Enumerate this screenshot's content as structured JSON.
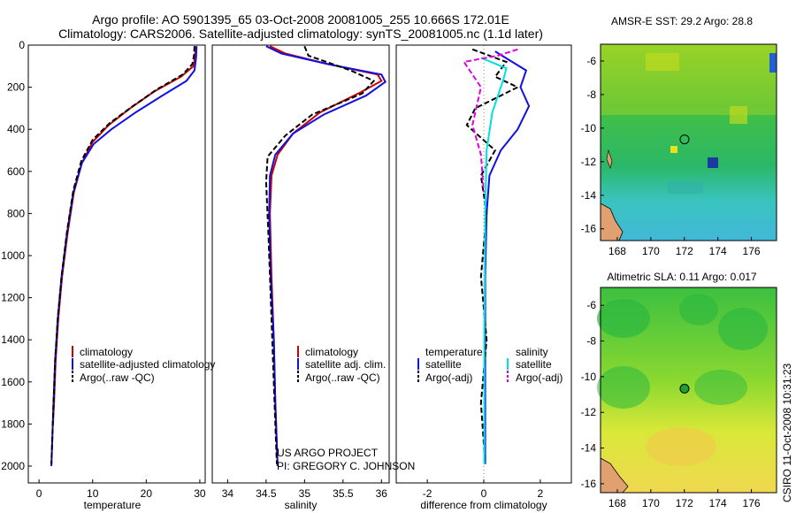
{
  "header": {
    "title_line1": "Argo profile: AO 5901395_65 03-Oct-2008 20081005_255 10.666S 172.01E",
    "title_line2": "Climatology: CARS2006. Satellite-adjusted climatology: synTS_20081005.nc (1.1d later)"
  },
  "credits": {
    "line1": "US ARGO PROJECT",
    "line2": "PI: GREGORY C. JOHNSON"
  },
  "timestamp": "CSIRO 11-Oct-2008 10:31:23",
  "colors": {
    "climatology": "#d00000",
    "satellite": "#1010e0",
    "argo": "#000000",
    "satellite_salt": "#00e0e0",
    "argo_salt": "#e000e0"
  },
  "chart_data": [
    {
      "type": "line",
      "id": "temperature",
      "xlabel": "temperature",
      "ylabel": "",
      "xlim": [
        -2,
        31
      ],
      "ylim": [
        2080,
        0
      ],
      "xticks": [
        0,
        10,
        20,
        30
      ],
      "xtick_labels": [
        "0",
        "10",
        "20",
        "30"
      ],
      "yticks": [
        0,
        200,
        400,
        600,
        800,
        1000,
        1200,
        1400,
        1600,
        1800,
        2000
      ],
      "ytick_labels": [
        "0",
        "200",
        "400",
        "600",
        "800",
        "1000",
        "1200",
        "1400",
        "1600",
        "1800",
        "2000"
      ],
      "legend": [
        "climatology",
        "satellite-adjusted climatology",
        "Argo(..raw -QC)"
      ],
      "series": [
        {
          "name": "climatology",
          "color": "#d00000",
          "dash": "",
          "x": [
            29.2,
            29.1,
            28.8,
            26.5,
            21.5,
            17,
            13,
            10,
            8,
            6.5,
            5.3,
            4.3,
            3.6,
            3.1,
            2.8,
            2.6
          ],
          "y": [
            5,
            60,
            100,
            150,
            220,
            300,
            380,
            460,
            560,
            700,
            900,
            1100,
            1300,
            1500,
            1700,
            1800
          ]
        },
        {
          "name": "satellite-adjusted climatology",
          "color": "#1010e0",
          "dash": "",
          "x": [
            29.4,
            29.3,
            29.0,
            27.5,
            23,
            18,
            13.5,
            10.2,
            8,
            6.4,
            5.2,
            4.2,
            3.5,
            3.0,
            2.7,
            2.5,
            2.3
          ],
          "y": [
            5,
            60,
            120,
            170,
            240,
            320,
            400,
            470,
            560,
            700,
            900,
            1100,
            1300,
            1500,
            1700,
            1850,
            2000
          ]
        },
        {
          "name": "Argo(..raw -QC)",
          "color": "#000000",
          "dash": "6,3",
          "x": [
            29.0,
            28.9,
            28.6,
            26.8,
            22,
            17.5,
            13.2,
            10,
            7.9,
            6.4,
            5.2,
            4.2,
            3.5,
            3.0,
            2.7,
            2.5,
            2.3
          ],
          "y": [
            5,
            50,
            90,
            140,
            210,
            290,
            370,
            450,
            550,
            690,
            890,
            1100,
            1300,
            1500,
            1700,
            1850,
            1990
          ]
        }
      ]
    },
    {
      "type": "line",
      "id": "salinity",
      "xlabel": "salinity",
      "ylabel": "",
      "xlim": [
        33.8,
        36.1
      ],
      "ylim": [
        2080,
        0
      ],
      "xticks": [
        34,
        34.5,
        35,
        35.5,
        36
      ],
      "xtick_labels": [
        "34",
        "34.5",
        "35",
        "35.5",
        "36"
      ],
      "yticks": [],
      "ytick_labels": [],
      "legend": [
        "climatology",
        "satellite adj. clim.",
        "Argo(..raw -QC)"
      ],
      "series": [
        {
          "name": "climatology",
          "color": "#d00000",
          "dash": "",
          "x": [
            34.55,
            34.75,
            35.3,
            35.95,
            36.0,
            35.7,
            35.2,
            34.85,
            34.65,
            34.57,
            34.55,
            34.57,
            34.6,
            34.62,
            34.65
          ],
          "y": [
            5,
            40,
            90,
            140,
            170,
            230,
            320,
            420,
            520,
            620,
            800,
            1100,
            1400,
            1700,
            2000
          ]
        },
        {
          "name": "satellite adj. clim.",
          "color": "#1010e0",
          "dash": "",
          "x": [
            34.5,
            34.7,
            35.3,
            36.0,
            36.05,
            35.8,
            35.25,
            34.85,
            34.62,
            34.55,
            34.54,
            34.56,
            34.6,
            34.62,
            34.65
          ],
          "y": [
            5,
            40,
            90,
            140,
            175,
            240,
            330,
            420,
            520,
            620,
            800,
            1100,
            1400,
            1700,
            2000
          ]
        },
        {
          "name": "Argo(..raw -QC)",
          "color": "#000000",
          "dash": "6,3",
          "x": [
            35.0,
            35.05,
            35.6,
            35.9,
            35.75,
            35.1,
            34.75,
            34.52,
            34.5,
            34.53,
            34.57,
            34.61,
            34.64
          ],
          "y": [
            5,
            50,
            120,
            170,
            230,
            330,
            430,
            530,
            650,
            900,
            1300,
            1700,
            1990
          ]
        }
      ]
    },
    {
      "type": "line",
      "id": "difference",
      "xlabel": "difference from climatology",
      "ylabel": "",
      "xlim": [
        -3.1,
        3.1
      ],
      "ylim": [
        2080,
        0
      ],
      "xticks": [
        -2,
        0,
        2
      ],
      "xtick_labels": [
        "-2",
        "0",
        "2"
      ],
      "yticks": [],
      "ytick_labels": [],
      "legend_headers": [
        "temperature",
        "salinity"
      ],
      "legend": [
        "satellite",
        "Argo(-adj)",
        "satellite",
        "Argo(-adj)"
      ],
      "series": [
        {
          "name": "temperature satellite",
          "color": "#1010e0",
          "dash": "",
          "x": [
            0.4,
            1.5,
            1.3,
            1.6,
            1.2,
            0.6,
            0.2,
            0.1,
            0.05,
            0.05,
            0.05
          ],
          "y": [
            30,
            120,
            200,
            290,
            400,
            500,
            620,
            800,
            1100,
            1500,
            1990
          ]
        },
        {
          "name": "temperature Argo(-adj)",
          "color": "#000000",
          "dash": "6,3",
          "x": [
            -0.4,
            0.8,
            0.4,
            1.2,
            -0.3,
            -0.6,
            0.4,
            -0.1,
            0.1,
            -0.1,
            0.1,
            -0.1,
            0.05
          ],
          "y": [
            20,
            80,
            150,
            200,
            300,
            380,
            500,
            620,
            800,
            1100,
            1400,
            1700,
            1990
          ]
        },
        {
          "name": "salinity satellite",
          "color": "#00e0e0",
          "dash": "",
          "x": [
            -0.1,
            0.8,
            0.7,
            0.3,
            0.1,
            0.05,
            0.02,
            0.02
          ],
          "y": [
            60,
            110,
            160,
            320,
            500,
            800,
            1400,
            1990
          ]
        },
        {
          "name": "salinity Argo(-adj)",
          "color": "#e000e0",
          "dash": "6,3",
          "x": [
            1.2,
            0.5,
            -0.7,
            -0.1,
            -0.4,
            -0.1,
            0.0
          ],
          "y": [
            20,
            50,
            80,
            200,
            380,
            520,
            700
          ]
        }
      ]
    },
    {
      "type": "heatmap",
      "id": "sst-map",
      "title": "AMSR-E SST: 29.2 Argo: 28.8",
      "xlim": [
        167,
        177.5
      ],
      "ylim": [
        -16.7,
        -5
      ],
      "xticks": [
        168,
        170,
        172,
        174,
        176
      ],
      "xtick_labels": [
        "168",
        "170",
        "172",
        "174",
        "176"
      ],
      "yticks": [
        -6,
        -8,
        -10,
        -12,
        -14,
        -16
      ],
      "ytick_labels": [
        "-6",
        "-8",
        "-10",
        "-12",
        "-14",
        "-16"
      ],
      "marker": {
        "lon": 172.01,
        "lat": -10.67
      }
    },
    {
      "type": "heatmap",
      "id": "sla-map",
      "title": "Altimetric SLA: 0.11 Argo: 0.017",
      "xlim": [
        167,
        177.5
      ],
      "ylim": [
        -16.5,
        -5
      ],
      "xticks": [
        168,
        170,
        172,
        174,
        176
      ],
      "xtick_labels": [
        "168",
        "170",
        "172",
        "174",
        "176"
      ],
      "yticks": [
        -6,
        -8,
        -10,
        -12,
        -14,
        -16
      ],
      "ytick_labels": [
        "-6",
        "-8",
        "-10",
        "-12",
        "-14",
        "-16"
      ],
      "marker": {
        "lon": 172.01,
        "lat": -10.67
      }
    }
  ]
}
